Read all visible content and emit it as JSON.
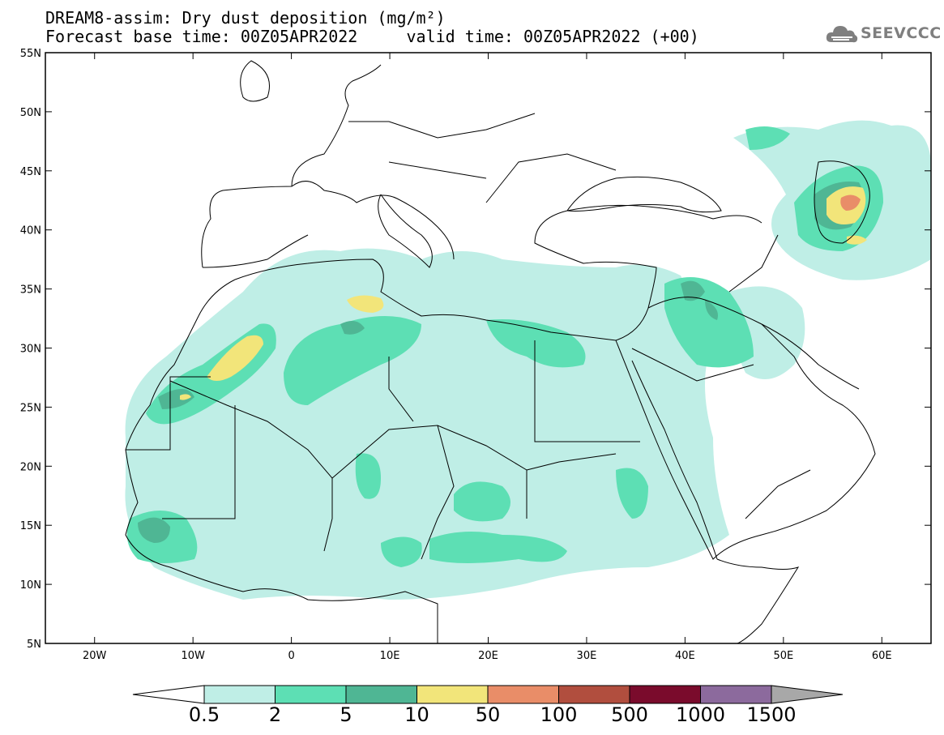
{
  "header": {
    "title_line1": "DREAM8-assim: Dry dust deposition (mg/m²)",
    "title_line2": "Forecast base time: 00Z05APR2022     valid time: 00Z05APR2022 (+00)"
  },
  "logo": {
    "text": "SEEVCCC",
    "icon": "cloud-logo-icon"
  },
  "map": {
    "lon_range": [
      -25,
      65
    ],
    "lat_range": [
      5,
      55
    ],
    "lon_ticks": [
      "20W",
      "10W",
      "0",
      "10E",
      "20E",
      "30E",
      "40E",
      "50E",
      "60E"
    ],
    "lat_ticks": [
      "5N",
      "10N",
      "15N",
      "20N",
      "25N",
      "30N",
      "35N",
      "40N",
      "45N",
      "50N",
      "55N"
    ]
  },
  "colorbar": {
    "labels": [
      "0.5",
      "2",
      "5",
      "10",
      "50",
      "100",
      "500",
      "1000",
      "1500"
    ],
    "colors": [
      "#bfeee6",
      "#5ddfb4",
      "#4fb694",
      "#f2e57a",
      "#e98d68",
      "#b14e3e",
      "#7a0b2c",
      "#8c6a9d"
    ],
    "under_color": "#ffffff",
    "over_color": "#a8a8a8"
  }
}
